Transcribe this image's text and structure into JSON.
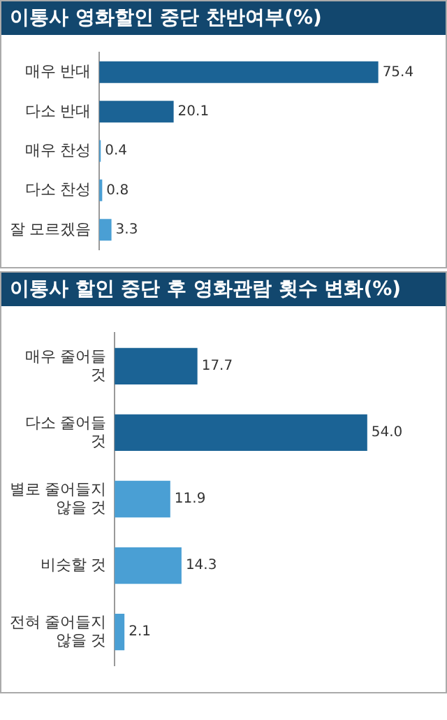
{
  "chart_data": [
    {
      "type": "bar",
      "orientation": "horizontal",
      "title": "이통사 영화할인 중단 찬반여부(%)",
      "categories": [
        "매우 반대",
        "다소 반대",
        "매우 찬성",
        "다소 찬성",
        "잘 모르겠음"
      ],
      "values": [
        75.4,
        20.1,
        0.4,
        0.8,
        3.3
      ],
      "value_labels": [
        "75.4",
        "20.1",
        "0.4",
        "0.8",
        "3.3"
      ],
      "colors": [
        "#1b6395",
        "#1b6395",
        "#4a9fd4",
        "#4a9fd4",
        "#4a9fd4"
      ],
      "tick_labels": "y",
      "grid": false,
      "legend": false
    },
    {
      "type": "bar",
      "orientation": "horizontal",
      "title": "이통사 할인 중단 후 영화관람 횟수 변화(%)",
      "categories": [
        "매우 줄어들 것",
        "다소 줄어들 것",
        "별로 줄어들지 않을 것",
        "비슷할 것",
        "전혀 줄어들지 않을 것"
      ],
      "values": [
        17.7,
        54.0,
        11.9,
        14.3,
        2.1
      ],
      "value_labels": [
        "17.7",
        "54.0",
        "11.9",
        "14.3",
        "2.1"
      ],
      "colors": [
        "#1b6395",
        "#1b6395",
        "#4a9fd4",
        "#4a9fd4",
        "#4a9fd4"
      ],
      "tick_labels": "y",
      "grid": false,
      "legend": false
    }
  ]
}
